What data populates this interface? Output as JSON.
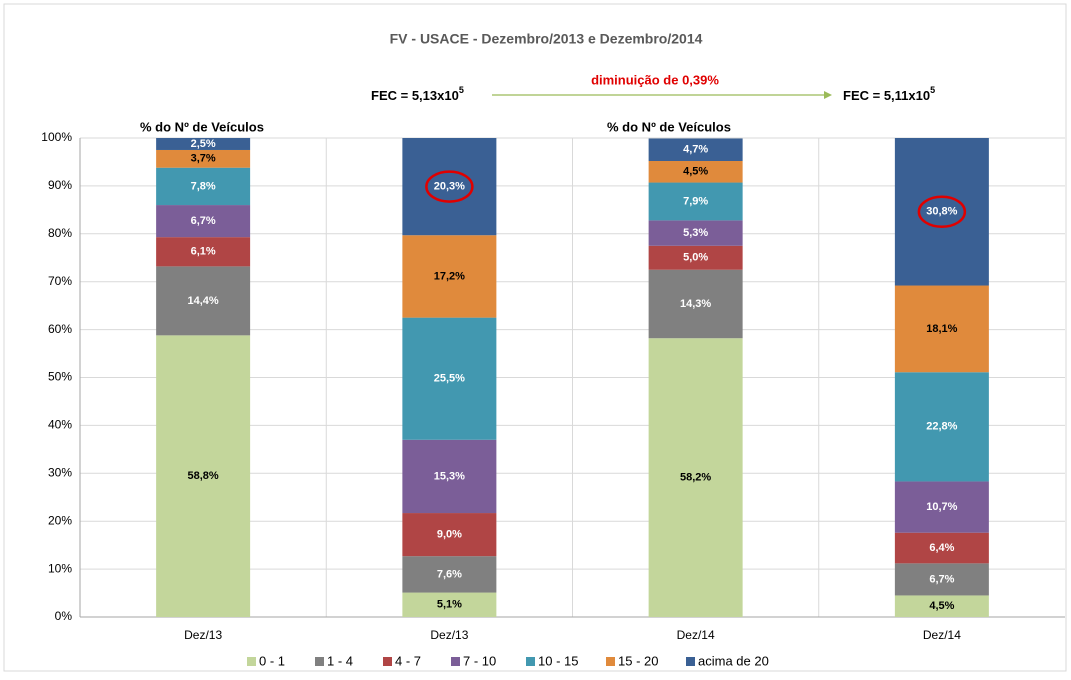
{
  "chart_data": {
    "type": "stacked-bar",
    "title": "FV - USACE - Dezembro/2013 e Dezembro/2014",
    "categories": [
      "Dez/13",
      "Dez/13",
      "Dez/14",
      "Dez/14"
    ],
    "series": [
      {
        "name": "0 - 1",
        "color": "#c3d69b",
        "label_color": "#000000",
        "values": [
          58.8,
          5.1,
          58.2,
          4.5
        ],
        "value_labels": [
          "58,8%",
          "5,1%",
          "58,2%",
          "4,5%"
        ]
      },
      {
        "name": "1 - 4",
        "color": "#808080",
        "label_color": "#ffffff",
        "values": [
          14.4,
          7.6,
          14.3,
          6.7
        ],
        "value_labels": [
          "14,4%",
          "7,6%",
          "14,3%",
          "6,7%"
        ]
      },
      {
        "name": "4 - 7",
        "color": "#b04545",
        "label_color": "#ffffff",
        "values": [
          6.1,
          9.0,
          5.0,
          6.4
        ],
        "value_labels": [
          "6,1%",
          "9,0%",
          "5,0%",
          "6,4%"
        ]
      },
      {
        "name": "7 - 10",
        "color": "#7b5e98",
        "label_color": "#ffffff",
        "values": [
          6.7,
          15.3,
          5.3,
          10.7
        ],
        "value_labels": [
          "6,7%",
          "15,3%",
          "5,3%",
          "10,7%"
        ]
      },
      {
        "name": "10 - 15",
        "color": "#4298b0",
        "label_color": "#ffffff",
        "values": [
          7.8,
          25.5,
          7.9,
          22.8
        ],
        "value_labels": [
          "7,8%",
          "25,5%",
          "7,9%",
          "22,8%"
        ]
      },
      {
        "name": "15 - 20",
        "color": "#e08a3c",
        "label_color": "#000000",
        "values": [
          3.7,
          17.2,
          4.5,
          18.1
        ],
        "value_labels": [
          "3,7%",
          "17,2%",
          "4,5%",
          "18,1%"
        ]
      },
      {
        "name": "acima de 20",
        "color": "#3a6094",
        "label_color": "#ffffff",
        "values": [
          2.5,
          20.3,
          4.7,
          30.8
        ],
        "value_labels": [
          "2,5%",
          "20,3%",
          "4,7%",
          "30,8%"
        ]
      }
    ],
    "ylim": [
      0,
      100
    ],
    "yticks": [
      {
        "value": 0,
        "label": "0%"
      },
      {
        "value": 10,
        "label": "10%"
      },
      {
        "value": 20,
        "label": "20%"
      },
      {
        "value": 30,
        "label": "30%"
      },
      {
        "value": 40,
        "label": "40%"
      },
      {
        "value": 50,
        "label": "50%"
      },
      {
        "value": 60,
        "label": "60%"
      },
      {
        "value": 70,
        "label": "70%"
      },
      {
        "value": 80,
        "label": "80%"
      },
      {
        "value": 90,
        "label": "90%"
      },
      {
        "value": 100,
        "label": "100%"
      }
    ],
    "grid": true,
    "legend": "bottom",
    "annotations": {
      "axis_note_left": "% do Nº de Veículos",
      "axis_note_right": "% do Nº de Veículos",
      "fec_left": {
        "text": "FEC = 5,13x10",
        "sup": "5"
      },
      "fec_right": {
        "text": "FEC = 5,11x10",
        "sup": "5"
      },
      "change": "diminuição de 0,39%"
    }
  }
}
